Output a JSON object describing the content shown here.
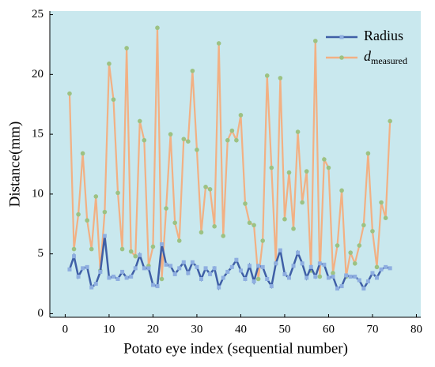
{
  "chart_data": {
    "type": "line",
    "x_label": "Potato eye index (sequential number)",
    "y_label": "Distance(mm)",
    "x": [
      1,
      2,
      3,
      4,
      5,
      6,
      7,
      8,
      9,
      10,
      11,
      12,
      13,
      14,
      15,
      16,
      17,
      18,
      19,
      20,
      21,
      22,
      23,
      24,
      25,
      26,
      27,
      28,
      29,
      30,
      31,
      32,
      33,
      34,
      35,
      36,
      37,
      38,
      39,
      40,
      41,
      42,
      43,
      44,
      45,
      46,
      47,
      48,
      49,
      50,
      51,
      52,
      53,
      54,
      55,
      56,
      57,
      58,
      59,
      60,
      61,
      62,
      63,
      64,
      65,
      66,
      67,
      68,
      69,
      70,
      71,
      72,
      73,
      74
    ],
    "series": [
      {
        "name": "Radius",
        "color": "#3f5fa6",
        "marker_color": "#8eaee0",
        "values": [
          3.7,
          4.8,
          3.1,
          3.8,
          3.9,
          2.2,
          2.5,
          3.5,
          6.5,
          3.0,
          3.1,
          2.9,
          3.5,
          3.0,
          3.1,
          3.8,
          4.9,
          3.8,
          3.8,
          2.4,
          2.3,
          5.8,
          4.1,
          4.0,
          3.3,
          3.8,
          4.3,
          3.4,
          4.3,
          3.9,
          2.9,
          3.8,
          3.3,
          3.8,
          2.2,
          3.0,
          3.5,
          3.9,
          4.5,
          3.6,
          2.9,
          4.0,
          2.7,
          4.0,
          3.9,
          2.9,
          2.3,
          4.2,
          5.3,
          3.3,
          3.0,
          4.0,
          5.1,
          4.2,
          3.0,
          3.9,
          3.1,
          4.2,
          4.1,
          3.0,
          3.1,
          2.1,
          2.3,
          3.2,
          3.1,
          3.1,
          2.8,
          2.1,
          2.7,
          3.4,
          3.0,
          3.7,
          3.9,
          3.8
        ]
      },
      {
        "name": "d",
        "name_subscript": "measured",
        "color": "#f2b083",
        "marker_color": "#9cc283",
        "values": [
          18.4,
          5.4,
          8.3,
          13.4,
          7.8,
          5.4,
          9.8,
          3.6,
          8.5,
          20.9,
          17.9,
          10.1,
          5.4,
          22.2,
          5.2,
          4.8,
          16.1,
          14.5,
          4.0,
          5.6,
          23.9,
          2.9,
          8.8,
          15.0,
          7.6,
          6.1,
          14.6,
          14.4,
          20.3,
          13.7,
          6.8,
          10.6,
          10.4,
          7.3,
          22.6,
          6.5,
          14.5,
          15.3,
          14.5,
          16.6,
          9.2,
          7.6,
          7.4,
          2.9,
          6.1,
          19.9,
          12.2,
          4.2,
          19.7,
          7.9,
          11.8,
          7.1,
          15.2,
          9.3,
          11.9,
          3.6,
          22.8,
          3.1,
          12.9,
          12.2,
          3.4,
          5.7,
          10.3,
          3.1,
          5.1,
          4.2,
          5.7,
          7.4,
          13.4,
          6.9,
          3.9,
          9.3,
          8.0,
          16.1
        ]
      }
    ],
    "xlim": [
      -3.5,
      81
    ],
    "ylim": [
      -0.3,
      25.3
    ],
    "xticks": [
      0,
      10,
      20,
      30,
      40,
      50,
      60,
      70,
      80
    ],
    "yticks": [
      0,
      5,
      10,
      15,
      20,
      25
    ],
    "legend": "upper right",
    "background": "#c9e8ee"
  }
}
